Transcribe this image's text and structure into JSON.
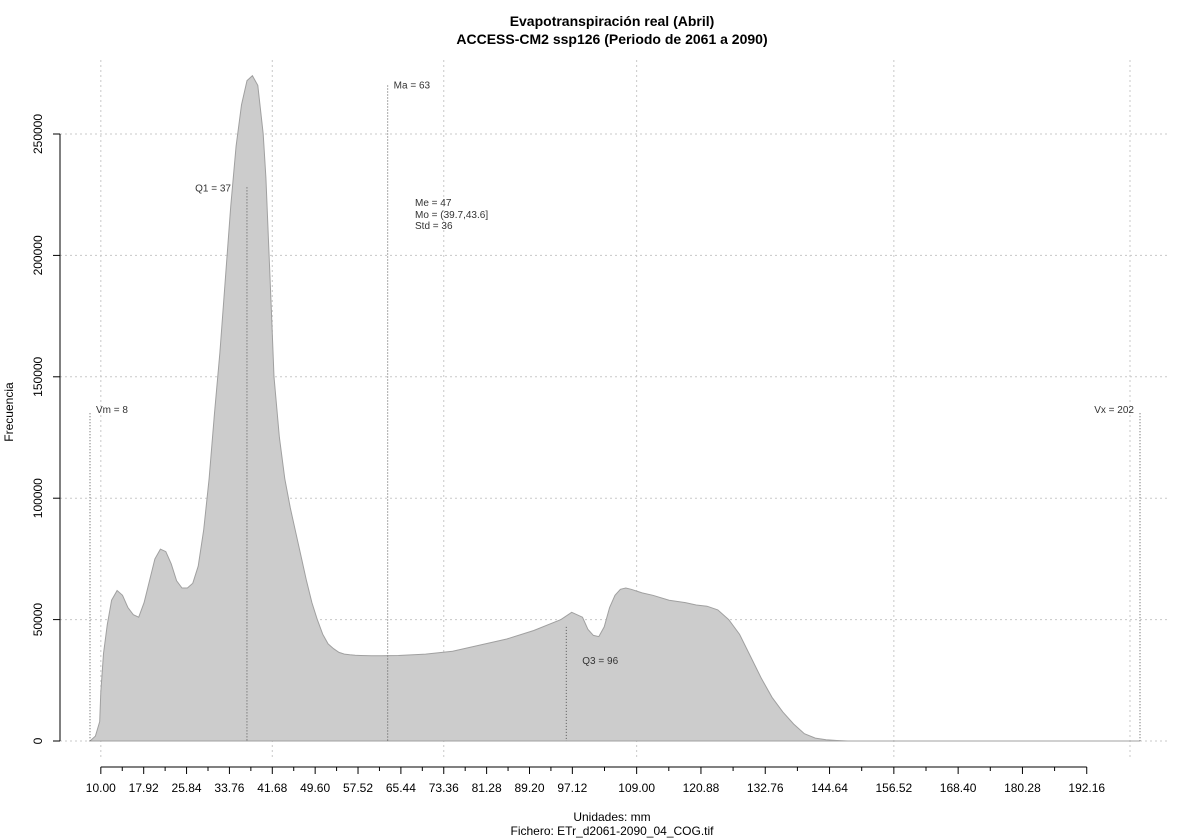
{
  "chart_data": {
    "type": "area",
    "title": "Evapotranspiración real (Abril)",
    "subtitle": "ACCESS-CM2 ssp126 (Periodo de 2061 a 2090)",
    "xlabel": "Unidades: mm",
    "caption": "Fichero: ETr_d2061-2090_04_COG.tif",
    "ylabel": "Frecuencia",
    "xlim": [
      8,
      202
    ],
    "ylim": [
      0,
      275000
    ],
    "x_ticks": [
      10.0,
      17.92,
      25.84,
      33.76,
      41.68,
      49.6,
      57.52,
      65.44,
      73.36,
      81.28,
      89.2,
      97.12,
      109.0,
      120.88,
      132.76,
      144.64,
      156.52,
      168.4,
      180.28,
      192.16
    ],
    "x_tick_labels": [
      "10.00",
      "17.92",
      "25.84",
      "33.76",
      "41.68",
      "49.60",
      "57.52",
      "65.44",
      "73.36",
      "81.28",
      "89.20",
      "97.12",
      "109.00",
      "120.88",
      "132.76",
      "144.64",
      "156.52",
      "168.40",
      "180.28",
      "192.16"
    ],
    "y_ticks": [
      0,
      50000,
      100000,
      150000,
      200000,
      250000
    ],
    "y_tick_labels": [
      "0",
      "50000",
      "100000",
      "150000",
      "200000",
      "250000"
    ],
    "grid": true,
    "fill_color": "#cccccc",
    "line_color": "#a0a0a0",
    "density": {
      "x": [
        8,
        9,
        9.8,
        10,
        10.5,
        11.2,
        12.0,
        13,
        14,
        15,
        16,
        17,
        18,
        19,
        20,
        21,
        22,
        23,
        24,
        25,
        26,
        27,
        28,
        29,
        30,
        31,
        32,
        33,
        34,
        35,
        36,
        37,
        38,
        39,
        40,
        40.5,
        41,
        41.5,
        42,
        43,
        44,
        45,
        46,
        47,
        48,
        49,
        50,
        51,
        52,
        53,
        54,
        55,
        56,
        57,
        58,
        60,
        62,
        65,
        70,
        75,
        80,
        85,
        90,
        95,
        97,
        99,
        100,
        101,
        102,
        103,
        104,
        105,
        106,
        107,
        108,
        110,
        112,
        115,
        118,
        120,
        122,
        124,
        126,
        128,
        130,
        132,
        134,
        136,
        138,
        140,
        142,
        144,
        146,
        148,
        150,
        155,
        160,
        170,
        180,
        190,
        200,
        202
      ],
      "y": [
        0,
        2000,
        8000,
        20000,
        36000,
        48000,
        58000,
        62000,
        60000,
        55000,
        52000,
        51000,
        57000,
        66000,
        75000,
        79000,
        78000,
        73000,
        66000,
        63000,
        63000,
        65000,
        72000,
        87000,
        108000,
        135000,
        160000,
        190000,
        220000,
        245000,
        262000,
        272000,
        274000,
        270000,
        250000,
        232000,
        205000,
        178000,
        150000,
        125000,
        108000,
        96000,
        86000,
        76000,
        66000,
        57000,
        50000,
        44000,
        40000,
        38000,
        36500,
        35800,
        35500,
        35300,
        35200,
        35100,
        35100,
        35200,
        35800,
        37000,
        39500,
        42000,
        45500,
        50000,
        53000,
        51000,
        46000,
        43500,
        43000,
        47000,
        55000,
        60000,
        62500,
        63000,
        62500,
        61000,
        60000,
        58000,
        57000,
        56000,
        55500,
        54000,
        50000,
        44000,
        35000,
        26000,
        18000,
        12000,
        7000,
        3000,
        1200,
        500,
        200,
        0,
        0,
        0,
        0,
        0,
        0,
        0,
        0,
        0
      ]
    },
    "markers": [
      {
        "label": "Vm = 8",
        "x": 8,
        "y_top": 135000
      },
      {
        "label": "Q1 = 37",
        "x": 37,
        "y_top": 228000
      },
      {
        "label": "Ma = 63",
        "x": 63,
        "y_top": 270000
      },
      {
        "label": "Q3 = 96",
        "x": 96,
        "y_top": 47000
      },
      {
        "label": "Vx = 202",
        "x": 202,
        "y_top": 135000
      }
    ],
    "stats": [
      "Me = 47",
      "Mo = (39.7,43.6]",
      "Std = 36"
    ]
  }
}
